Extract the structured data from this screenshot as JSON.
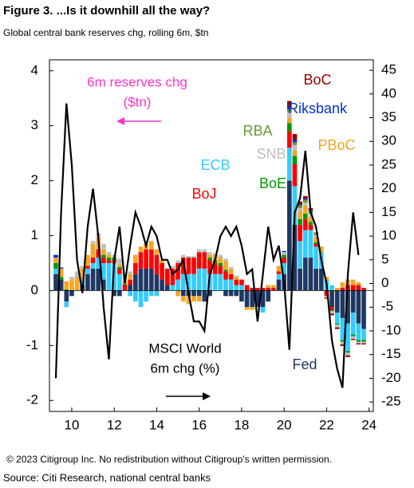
{
  "chart_data": {
    "type": "bar",
    "title": "Figure 3. ...Is it downhill all the way?",
    "subtitle": "Global central bank reserves chg, rolling 6m, $tn",
    "annotations": [
      "6m reserves chg",
      "($tn)",
      "MSCI World",
      "6m chg (%)"
    ],
    "copyright": "© 2023 Citigroup Inc. No redistribution without Citigroup's written permission.",
    "source": "Source: Citi Research, national central banks",
    "x": [
      9.25,
      9.5,
      9.75,
      10,
      10.25,
      10.5,
      10.75,
      11,
      11.25,
      11.5,
      11.75,
      12,
      12.25,
      12.5,
      12.75,
      13,
      13.25,
      13.5,
      13.75,
      14,
      14.25,
      14.5,
      14.75,
      15,
      15.25,
      15.5,
      15.75,
      16,
      16.25,
      16.5,
      16.75,
      17,
      17.25,
      17.5,
      17.75,
      18,
      18.25,
      18.5,
      18.75,
      19,
      19.25,
      19.5,
      19.75,
      20,
      20.25,
      20.5,
      20.75,
      21,
      21.25,
      21.5,
      21.75,
      22,
      22.25,
      22.5,
      22.75,
      23,
      23.25,
      23.5,
      23.75
    ],
    "xlim": [
      8.95,
      24.2
    ],
    "xticks": [
      10,
      12,
      14,
      16,
      18,
      20,
      22,
      24
    ],
    "ylim": [
      -2.2,
      4.2
    ],
    "yticks": [
      -2,
      -1,
      0,
      1,
      2,
      3,
      4
    ],
    "y2lim": [
      -27,
      47.2
    ],
    "y2ticks": [
      -25,
      -20,
      -15,
      -10,
      -5,
      0,
      5,
      10,
      15,
      20,
      25,
      30,
      35,
      40,
      45
    ],
    "series": [
      {
        "name": "Fed",
        "color": "#1f3864",
        "values": [
          0.3,
          0.2,
          -0.2,
          -0.1,
          0,
          0.1,
          0.3,
          0.4,
          0.4,
          0.2,
          0,
          -0.1,
          -0.1,
          0,
          0.1,
          0.3,
          0.4,
          0.4,
          0.4,
          0.3,
          0.2,
          0.1,
          0,
          0,
          -0.1,
          -0.1,
          -0.1,
          -0.1,
          -0.2,
          -0.1,
          0,
          0,
          -0.1,
          -0.1,
          -0.1,
          -0.2,
          -0.3,
          -0.3,
          -0.3,
          -0.3,
          -0.2,
          0,
          0.2,
          0.3,
          2.0,
          1.2,
          0.4,
          0.6,
          0.6,
          0.4,
          0.4,
          0,
          -0.3,
          -0.4,
          -0.5,
          -0.6,
          -0.4,
          -0.6,
          -0.7
        ]
      },
      {
        "name": "ECB",
        "color": "#33ccff",
        "values": [
          0.1,
          0,
          -0.1,
          0,
          0,
          0.1,
          0.1,
          0.1,
          0.2,
          0.3,
          0.5,
          0.5,
          0.3,
          0,
          -0.1,
          -0.2,
          -0.3,
          -0.2,
          -0.1,
          -0.1,
          0,
          0,
          0.1,
          0.2,
          0.3,
          0.3,
          0.3,
          0.4,
          0.4,
          0.3,
          0.3,
          0.3,
          0.2,
          0.2,
          0.1,
          0.1,
          0,
          0,
          0,
          -0.1,
          0,
          0,
          0.1,
          0.2,
          0.6,
          0.7,
          0.5,
          0.5,
          0.5,
          0.4,
          0.3,
          0.2,
          0.1,
          -0.2,
          -0.4,
          -0.5,
          -0.4,
          -0.3,
          -0.2
        ]
      },
      {
        "name": "BoJ",
        "color": "#ff0000",
        "values": [
          0,
          0,
          0,
          0,
          0,
          0,
          0.05,
          0.1,
          0.15,
          0.1,
          0.05,
          0.05,
          0.1,
          0.1,
          0.1,
          0.2,
          0.3,
          0.35,
          0.35,
          0.35,
          0.3,
          0.3,
          0.3,
          0.3,
          0.3,
          0.3,
          0.3,
          0.3,
          0.3,
          0.25,
          0.2,
          0.15,
          0.15,
          0.1,
          0.1,
          0.1,
          0.1,
          0.05,
          0.05,
          0.05,
          0.05,
          0.05,
          0.05,
          0.1,
          0.3,
          0.4,
          0.3,
          0.2,
          0.1,
          0.05,
          0,
          -0.1,
          -0.05,
          0,
          0.05,
          0.1,
          0.1,
          0.1,
          0.05
        ]
      },
      {
        "name": "BoE",
        "color": "#009900",
        "values": [
          0.1,
          0.05,
          0.02,
          0,
          0,
          0,
          0,
          0,
          0,
          0.05,
          0.05,
          0.05,
          0.03,
          0.02,
          0,
          0,
          0,
          0,
          0,
          0,
          0,
          0,
          0,
          0,
          0,
          0,
          0,
          0,
          0,
          0.05,
          0.05,
          0.05,
          0.03,
          0,
          0,
          0,
          0,
          0,
          0,
          0,
          0,
          0,
          0,
          0.05,
          0.15,
          0.15,
          0.1,
          0.1,
          0.05,
          0.03,
          0,
          0,
          -0.02,
          -0.02,
          -0.03,
          -0.03,
          -0.03,
          -0.03,
          -0.03
        ]
      },
      {
        "name": "PBoC",
        "color": "#f5a623",
        "values": [
          0.1,
          0.15,
          0.15,
          0.2,
          0.25,
          0.2,
          0.2,
          0.25,
          0.2,
          0.1,
          0.05,
          0,
          0.05,
          0.05,
          0.1,
          0.15,
          0.1,
          0.1,
          0.15,
          0.1,
          0.05,
          0,
          0,
          -0.1,
          -0.1,
          -0.15,
          -0.1,
          -0.1,
          0,
          0.05,
          0.1,
          0.1,
          0.15,
          0.1,
          0.05,
          0,
          -0.05,
          -0.05,
          0,
          0,
          0.05,
          0.05,
          0.1,
          0,
          0.1,
          0.1,
          0.15,
          0.15,
          0.1,
          0.1,
          0.1,
          0.05,
          0,
          0.05,
          0.1,
          0.1,
          0.1,
          0.05,
          0
        ]
      },
      {
        "name": "SNB",
        "color": "#bfbfbf",
        "values": [
          0,
          0,
          0,
          0.05,
          0.1,
          0.05,
          0,
          0.05,
          0.1,
          0.1,
          0.05,
          0.05,
          0.1,
          0.15,
          0.05,
          0,
          0,
          0,
          0,
          0,
          0,
          0,
          0.05,
          0.05,
          0.05,
          0.03,
          0.03,
          0.05,
          0.05,
          0.05,
          0.03,
          0.05,
          0.05,
          0.03,
          0.02,
          0,
          0,
          0,
          0,
          0,
          0,
          0,
          0,
          0.05,
          0.1,
          0.1,
          0.05,
          0.05,
          0.05,
          0.03,
          0,
          -0.03,
          -0.05,
          -0.05,
          -0.05,
          -0.05,
          -0.05,
          -0.03,
          -0.03
        ]
      },
      {
        "name": "RBA",
        "color": "#669933",
        "values": [
          0,
          0,
          0,
          0,
          0,
          0,
          0,
          0,
          0,
          0,
          0,
          0,
          0,
          0,
          0,
          0,
          0,
          0,
          0,
          0,
          0,
          0,
          0,
          0,
          0,
          0,
          0,
          0,
          0,
          0,
          0,
          0,
          0,
          0,
          0,
          0,
          0,
          0,
          0,
          0,
          0,
          0,
          0,
          0,
          0.05,
          0.05,
          0.05,
          0.05,
          0.05,
          0.05,
          0,
          0,
          0,
          0,
          0,
          0,
          0,
          0,
          0
        ]
      },
      {
        "name": "Riksbank",
        "color": "#0033cc",
        "values": [
          0.05,
          0.02,
          0,
          0,
          0,
          0,
          0,
          0,
          0,
          0,
          0,
          0,
          0,
          0,
          0,
          0,
          0,
          0,
          0,
          0,
          0,
          0,
          0,
          0,
          0,
          0,
          0,
          0,
          0,
          0,
          0,
          0,
          0,
          0,
          0,
          0,
          0,
          0,
          0,
          0,
          0,
          0,
          0,
          0.02,
          0.05,
          0.05,
          0.02,
          0.02,
          0.02,
          0,
          0,
          0,
          0,
          0,
          0,
          0,
          0,
          0,
          0
        ]
      },
      {
        "name": "BoC",
        "color": "#990000",
        "values": [
          0,
          0,
          0,
          0,
          0,
          0,
          0,
          0,
          0,
          0,
          0,
          0,
          0,
          0,
          0,
          0,
          0,
          0,
          0,
          0,
          0,
          0,
          0,
          0,
          0,
          0,
          0,
          0,
          0,
          0,
          0,
          0,
          0,
          0,
          0,
          0,
          0,
          0,
          0,
          0,
          0,
          0,
          0,
          0,
          0.1,
          0.1,
          0.05,
          0.05,
          0.03,
          0,
          0,
          -0.02,
          -0.03,
          -0.03,
          -0.03,
          -0.03,
          -0.02,
          -0.02,
          -0.02
        ]
      },
      {
        "name": "MSCI World 6m chg (%)",
        "type": "line",
        "axis": "y2",
        "color": "#000000",
        "values": [
          -20,
          15,
          38,
          25,
          5,
          -2,
          12,
          20,
          10,
          -5,
          -16,
          5,
          12,
          0,
          8,
          15,
          12,
          8,
          12,
          10,
          5,
          5,
          2,
          3,
          5,
          -2,
          -8,
          -8,
          -10,
          2,
          5,
          10,
          12,
          10,
          12,
          8,
          2,
          3,
          -8,
          2,
          12,
          5,
          8,
          0,
          -14,
          15,
          18,
          28,
          15,
          12,
          5,
          0,
          -12,
          -18,
          -22,
          2,
          15,
          6,
          null
        ]
      }
    ]
  }
}
